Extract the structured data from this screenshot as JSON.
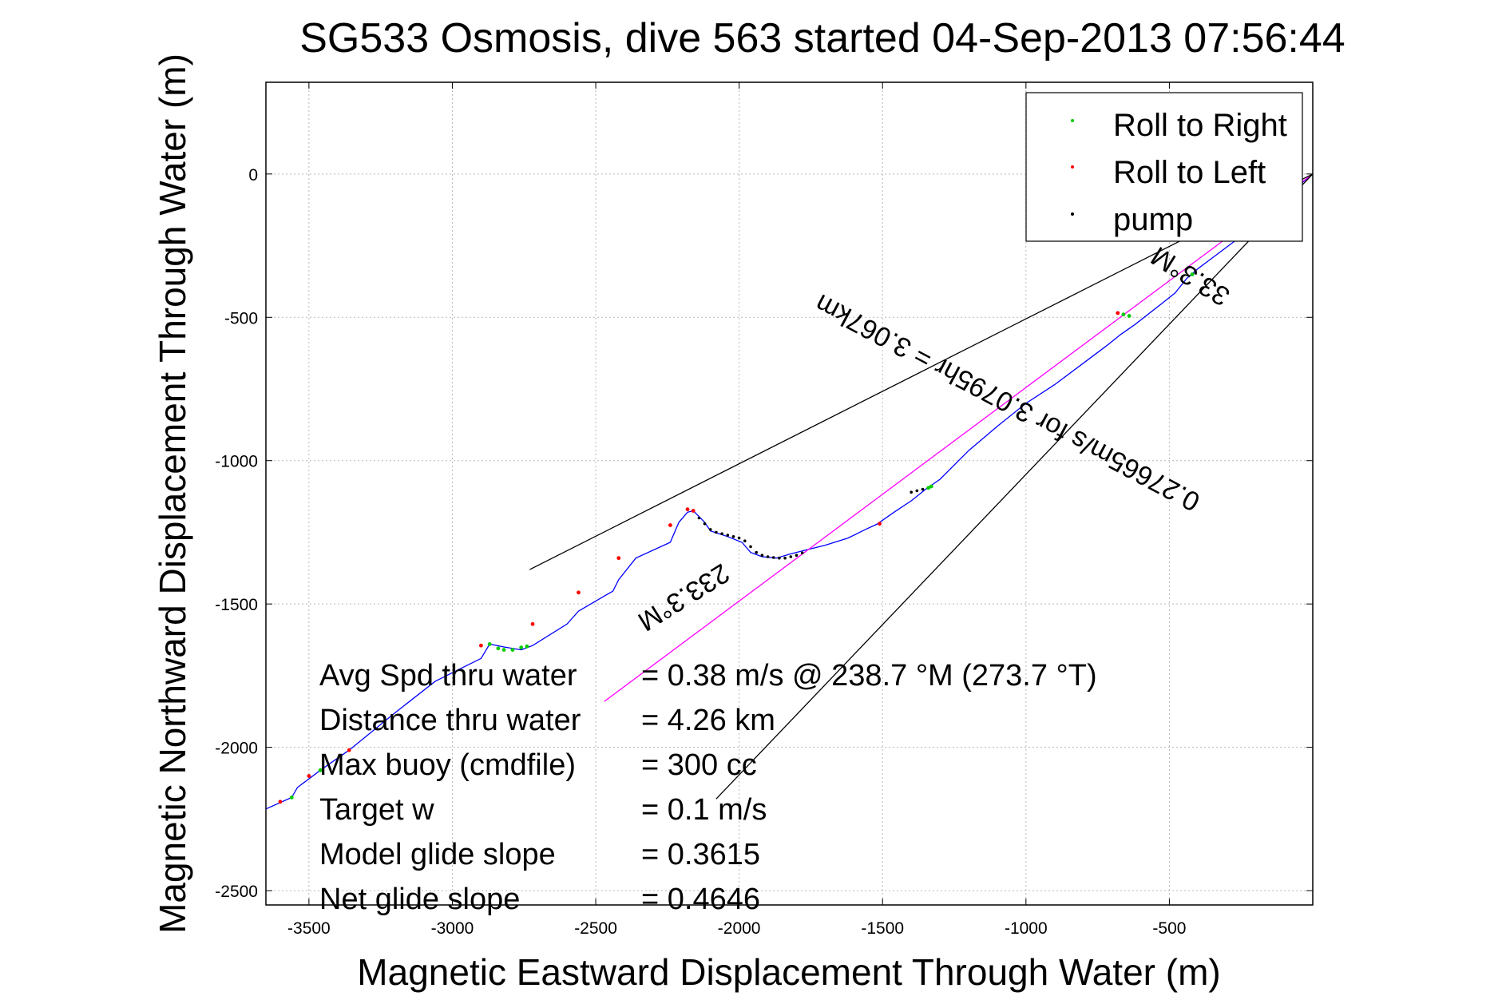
{
  "chart_data": {
    "type": "line",
    "title": "SG533 Osmosis, dive 563 started 04-Sep-2013 07:56:44",
    "xlabel": "Magnetic Eastward Displacement Through Water (m)",
    "ylabel": "Magnetic Northward Displacement Through Water (m)",
    "xlim": [
      -3650,
      0
    ],
    "ylim": [
      -2550,
      320
    ],
    "xticks": [
      -3500,
      -3000,
      -2500,
      -2000,
      -1500,
      -1000,
      -500
    ],
    "yticks": [
      0,
      -500,
      -1000,
      -1500,
      -2000,
      -2500
    ],
    "grid": true,
    "legend": {
      "position": "top-right",
      "entries": [
        {
          "label": "Roll to Right",
          "color": "#00cc00"
        },
        {
          "label": "Roll to Left",
          "color": "#ff0000"
        },
        {
          "label": "pump",
          "color": "#000000"
        }
      ]
    },
    "series": [
      {
        "name": "track",
        "color": "#0000ff",
        "x": [
          -3650,
          -3560,
          -3540,
          -3460,
          -3360,
          -3200,
          -3060,
          -2960,
          -2900,
          -2870,
          -2820,
          -2760,
          -2720,
          -2600,
          -2560,
          -2440,
          -2420,
          -2360,
          -2240,
          -2210,
          -2180,
          -2160,
          -2140,
          -2120,
          -2100,
          -2070,
          -2040,
          -1990,
          -1960,
          -1920,
          -1870,
          -1820,
          -1760,
          -1700,
          -1620,
          -1560,
          -1520,
          -1460,
          -1400,
          -1350,
          -1300,
          -1200,
          -1100,
          -1000,
          -900,
          -800,
          -720,
          -670,
          -620,
          -530,
          -480,
          -440,
          -400,
          -360,
          -300,
          -200,
          -120,
          -60,
          0
        ],
        "y": [
          -2215,
          -2175,
          -2140,
          -2080,
          -2010,
          -1880,
          -1770,
          -1720,
          -1690,
          -1640,
          -1650,
          -1660,
          -1645,
          -1570,
          -1525,
          -1455,
          -1415,
          -1340,
          -1285,
          -1215,
          -1180,
          -1175,
          -1195,
          -1215,
          -1245,
          -1255,
          -1265,
          -1285,
          -1320,
          -1335,
          -1340,
          -1325,
          -1310,
          -1295,
          -1270,
          -1240,
          -1222,
          -1180,
          -1140,
          -1100,
          -1065,
          -965,
          -880,
          -800,
          -735,
          -660,
          -600,
          -560,
          -525,
          -455,
          -415,
          -365,
          -330,
          -300,
          -255,
          -180,
          -110,
          -50,
          0
        ]
      },
      {
        "name": "magenta-line",
        "color": "#ff00ff",
        "x": [
          -2470,
          0
        ],
        "y": [
          -1840,
          0
        ]
      },
      {
        "name": "upper-bound-line",
        "color": "#000000",
        "x": [
          -2730,
          0
        ],
        "y": [
          -1380,
          0
        ]
      },
      {
        "name": "lower-bound-line",
        "color": "#000000",
        "x": [
          -2080,
          0
        ],
        "y": [
          -2180,
          0
        ]
      }
    ],
    "markers": {
      "roll_right": [
        [
          -3560,
          -2175
        ],
        [
          -3460,
          -2080
        ],
        [
          -2870,
          -1640
        ],
        [
          -2840,
          -1655
        ],
        [
          -2820,
          -1660
        ],
        [
          -2790,
          -1660
        ],
        [
          -2760,
          -1652
        ],
        [
          -2740,
          -1648
        ],
        [
          -1330,
          -1090
        ],
        [
          -1340,
          -1095
        ],
        [
          -660,
          -490
        ],
        [
          -640,
          -495
        ],
        [
          -420,
          -350
        ]
      ],
      "roll_left": [
        [
          -3600,
          -2190
        ],
        [
          -3500,
          -2100
        ],
        [
          -3360,
          -2010
        ],
        [
          -2900,
          -1645
        ],
        [
          -2720,
          -1570
        ],
        [
          -2560,
          -1460
        ],
        [
          -2420,
          -1340
        ],
        [
          -2240,
          -1225
        ],
        [
          -2180,
          -1170
        ],
        [
          -2160,
          -1175
        ],
        [
          -1510,
          -1220
        ],
        [
          -680,
          -485
        ]
      ],
      "pump": [
        [
          -2140,
          -1200
        ],
        [
          -2120,
          -1220
        ],
        [
          -2100,
          -1240
        ],
        [
          -2080,
          -1250
        ],
        [
          -2060,
          -1255
        ],
        [
          -2040,
          -1260
        ],
        [
          -2020,
          -1265
        ],
        [
          -2000,
          -1270
        ],
        [
          -1980,
          -1280
        ],
        [
          -1960,
          -1300
        ],
        [
          -1940,
          -1320
        ],
        [
          -1920,
          -1330
        ],
        [
          -1900,
          -1335
        ],
        [
          -1880,
          -1338
        ],
        [
          -1860,
          -1340
        ],
        [
          -1840,
          -1340
        ],
        [
          -1820,
          -1335
        ],
        [
          -1800,
          -1330
        ],
        [
          -1780,
          -1322
        ],
        [
          -1400,
          -1110
        ],
        [
          -1380,
          -1105
        ],
        [
          -1360,
          -1100
        ]
      ]
    },
    "annotations": [
      {
        "text": "233.3°M",
        "x": -2210,
        "y": -1450,
        "rotation_deg": 148,
        "anchor": "middle"
      },
      {
        "text": "0.27665m/s for 3.0795hr = 3.067km",
        "x": -1050,
        "y": -770,
        "rotation_deg": 208,
        "anchor": "middle"
      },
      {
        "text": "33.3°M",
        "x": -410,
        "y": -330,
        "rotation_deg": 212,
        "anchor": "middle"
      }
    ],
    "stats": [
      {
        "label": "Avg Spd thru water",
        "value": "=  0.38 m/s @ 238.7 °M (273.7 °T)"
      },
      {
        "label": "Distance thru water",
        "value": "=  4.26 km"
      },
      {
        "label": "Max buoy (cmdfile)",
        "value": "= 300 cc"
      },
      {
        "label": "Target w",
        "value": "= 0.1 m/s"
      },
      {
        "label": "Model glide slope",
        "value": "= 0.3615"
      },
      {
        "label": "Net glide slope",
        "value": "= 0.4646"
      }
    ]
  }
}
